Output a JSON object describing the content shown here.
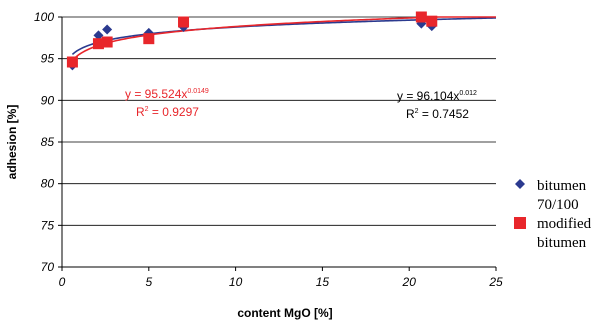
{
  "chart_data": {
    "type": "scatter",
    "title": "",
    "xlabel": "content MgO [%]",
    "ylabel": "adhesion [%]",
    "xlim": [
      0,
      25
    ],
    "ylim": [
      70,
      100
    ],
    "x_ticks": [
      "0",
      "5",
      "10",
      "15",
      "20",
      "25"
    ],
    "y_ticks": [
      "70",
      "75",
      "80",
      "85",
      "90",
      "95",
      "100"
    ],
    "grid": "horizontal",
    "legend_placement": "right",
    "series": [
      {
        "name": "bitumen 70/100",
        "legend_lines": [
          "bitumen",
          "70/100"
        ],
        "marker": "diamond",
        "color": "#2b3a8f",
        "x": [
          0.6,
          2.1,
          2.6,
          5.0,
          7.0,
          20.7,
          21.3
        ],
        "y": [
          94.2,
          97.8,
          98.5,
          98.1,
          98.8,
          99.2,
          98.9
        ],
        "trendline": {
          "equation": "y = 96.104x",
          "exponent": "0.012",
          "r2_label": "R",
          "r2_sup": "2",
          "r2_value": " = 0.7452",
          "a": 96.104,
          "b": 0.012,
          "color": "#2b3a8f"
        }
      },
      {
        "name": "modified bitumen",
        "legend_lines": [
          "modified",
          "bitumen"
        ],
        "marker": "square",
        "color": "#e8262b",
        "x": [
          0.6,
          2.1,
          2.6,
          5.0,
          7.0,
          20.7,
          21.3
        ],
        "y": [
          94.6,
          96.8,
          97.0,
          97.4,
          99.4,
          100.0,
          99.5
        ],
        "trendline": {
          "equation": "y = 95.524x",
          "exponent": "0.0149",
          "r2_label": "R",
          "r2_sup": "2",
          "r2_value": " = 0.9297",
          "a": 95.524,
          "b": 0.0149,
          "color": "#e8262b"
        }
      }
    ]
  }
}
